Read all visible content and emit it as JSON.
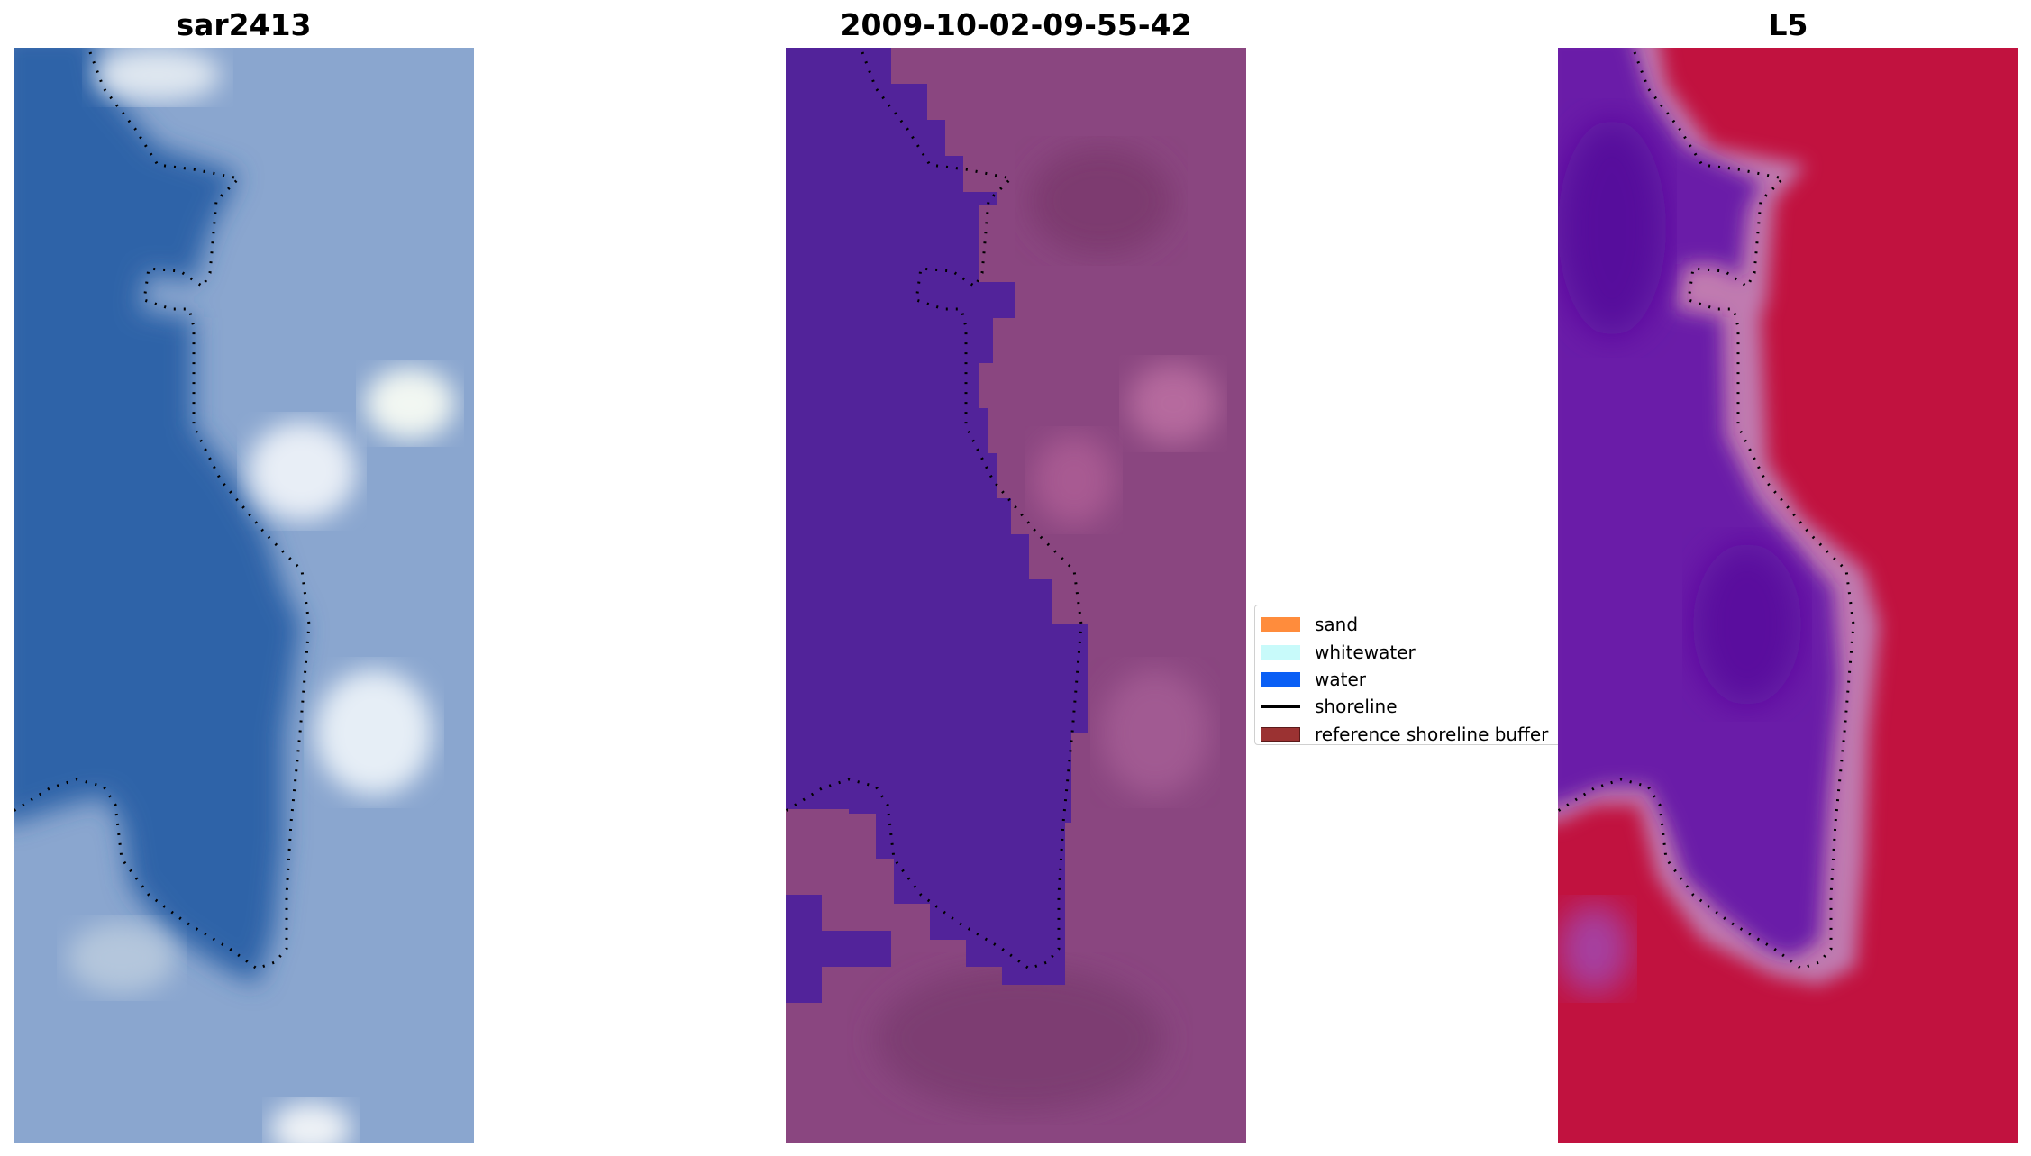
{
  "panels": [
    {
      "title": "sar2413"
    },
    {
      "title": "2009-10-02-09-55-42"
    },
    {
      "title": "L5"
    }
  ],
  "legend": {
    "items": [
      {
        "label": "sand",
        "kind": "patch",
        "color": "#ff8c3c"
      },
      {
        "label": "whitewater",
        "kind": "patch",
        "color": "#c8fafa"
      },
      {
        "label": "water",
        "kind": "patch",
        "color": "#0a5ff5"
      },
      {
        "label": "shoreline",
        "kind": "line",
        "color": "#000000"
      },
      {
        "label": "reference shoreline buffer",
        "kind": "patch",
        "color": "#9b3232"
      }
    ]
  },
  "colors": {
    "rgb_water": "#2f63a8",
    "rgb_land": "#8aa6cf",
    "class_water": "#52239a",
    "class_land": "#8a4680",
    "index_water": "#6a1ca8",
    "index_land": "#c1123f",
    "index_edge": "#c07ab0",
    "shoreline": "#000000"
  }
}
